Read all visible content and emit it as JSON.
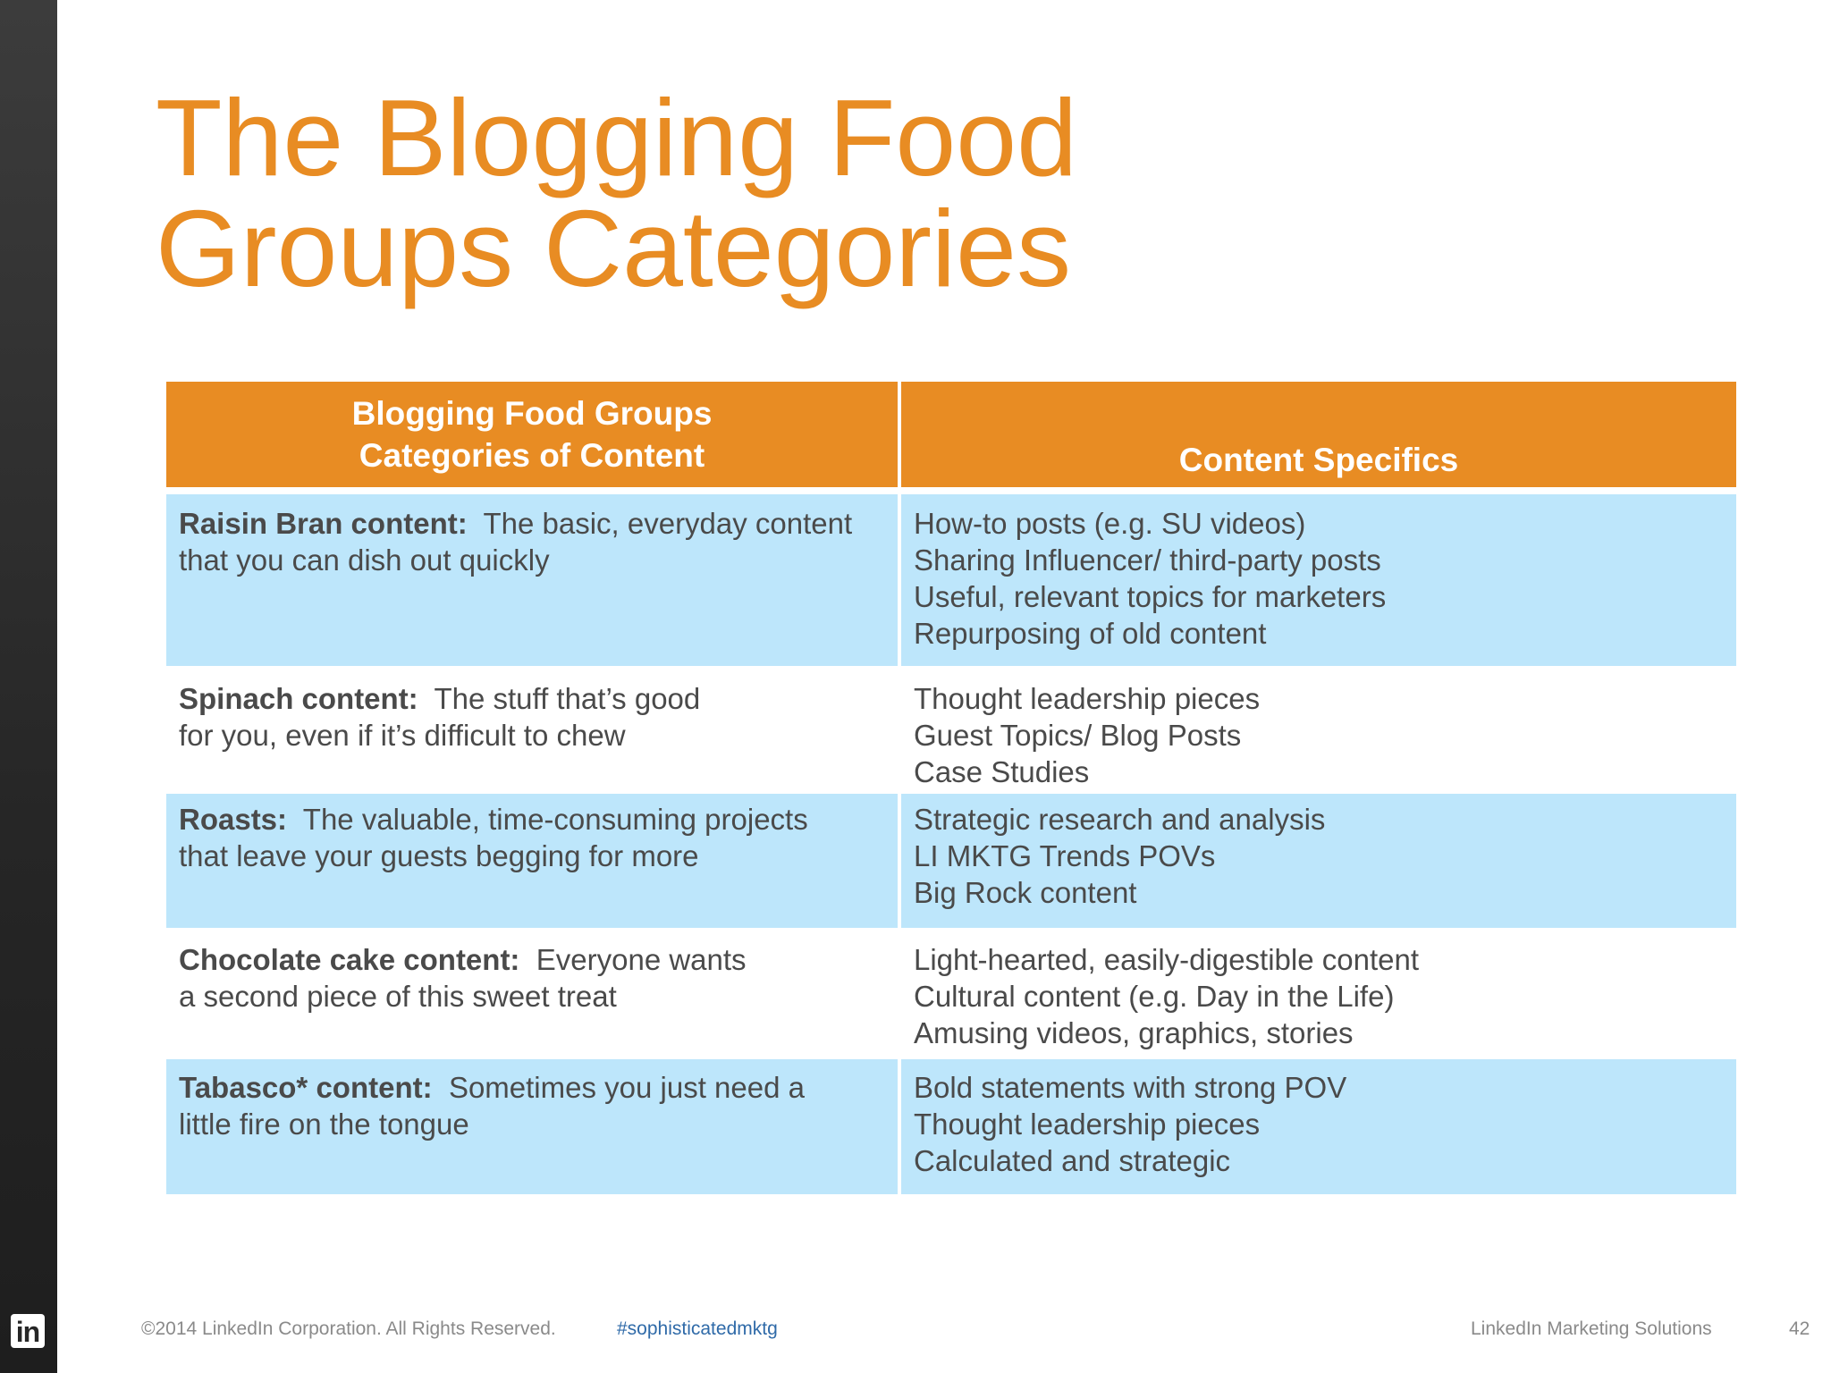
{
  "slide": {
    "title_line1": "The Blogging Food",
    "title_line2": "Groups Categories",
    "accent_color": "#e88c23",
    "row_highlight_color": "#bde6fb"
  },
  "table": {
    "header": {
      "col1_line1": "Blogging Food Groups",
      "col1_line2": "Categories of Content",
      "col2": "Content Specifics"
    },
    "rows": [
      {
        "term": "Raisin Bran content:",
        "desc_line1": "The basic, everyday content",
        "desc_line2": "that you can dish out quickly",
        "specifics": [
          "How-to posts (e.g. SU videos)",
          "Sharing Influencer/ third-party posts",
          "Useful, relevant topics for marketers",
          "Repurposing of old content"
        ]
      },
      {
        "term": "Spinach content:",
        "desc_line1": "The stuff that’s good",
        "desc_line2": "for you, even if it’s difficult to chew",
        "specifics": [
          "Thought leadership pieces",
          "Guest Topics/ Blog Posts",
          "Case Studies"
        ]
      },
      {
        "term": "Roasts:",
        "desc_line1": "The valuable, time-consuming projects",
        "desc_line2": "that leave your guests begging for more",
        "specifics": [
          "Strategic research and analysis",
          "LI MKTG Trends POVs",
          "Big Rock content"
        ]
      },
      {
        "term": "Chocolate cake content:",
        "desc_line1": "Everyone wants",
        "desc_line2": "a second piece of this sweet treat",
        "specifics": [
          "Light-hearted, easily-digestible content",
          "Cultural content (e.g. Day in the Life)",
          "Amusing videos, graphics, stories"
        ]
      },
      {
        "term": "Tabasco* content:",
        "desc_line1": "Sometimes you just need a",
        "desc_line2": "little fire on the tongue",
        "specifics": [
          "Bold statements with strong POV",
          "Thought leadership pieces",
          "Calculated and strategic"
        ]
      }
    ]
  },
  "footer": {
    "logo_text": "in",
    "copyright": "©2014 LinkedIn Corporation. All Rights Reserved.",
    "hashtag": "#sophisticatedmktg",
    "brand": "LinkedIn Marketing Solutions",
    "page_number": "42"
  }
}
